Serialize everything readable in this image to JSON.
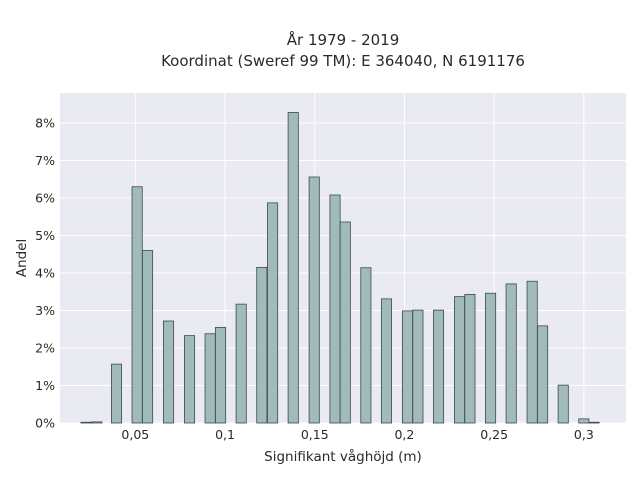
{
  "chart_data": {
    "type": "bar",
    "title_lines": [
      "År 1979 - 2019",
      "Koordinat (Sweref 99 TM): E 364040, N 6191176"
    ],
    "xlabel": "Signifikant våghöjd (m)",
    "ylabel": "Andel",
    "xlim": [
      0.008,
      0.3235
    ],
    "ylim": [
      0,
      0.088
    ],
    "x_ticks": [
      0.05,
      0.1,
      0.15,
      0.2,
      0.25,
      0.3
    ],
    "x_tick_labels": [
      "0,05",
      "0,1",
      "0,15",
      "0,2",
      "0,25",
      "0,3"
    ],
    "y_ticks": [
      0,
      0.01,
      0.02,
      0.03,
      0.04,
      0.05,
      0.06,
      0.07,
      0.08
    ],
    "y_tick_labels": [
      "0%",
      "1%",
      "2%",
      "3%",
      "4%",
      "5%",
      "6%",
      "7%",
      "8%"
    ],
    "bar_width": 0.0057,
    "x": [
      0.0225,
      0.0285,
      0.0395,
      0.051,
      0.0568,
      0.0685,
      0.0802,
      0.0917,
      0.0975,
      0.109,
      0.1205,
      0.1265,
      0.138,
      0.1497,
      0.1613,
      0.167,
      0.1785,
      0.19,
      0.2017,
      0.2075,
      0.219,
      0.2307,
      0.2365,
      0.248,
      0.2595,
      0.2712,
      0.277,
      0.2885,
      0.3,
      0.3057
    ],
    "values": [
      0.0002,
      0.0003,
      0.0157,
      0.063,
      0.046,
      0.0272,
      0.0233,
      0.0238,
      0.0255,
      0.0317,
      0.0415,
      0.0587,
      0.0828,
      0.0656,
      0.0608,
      0.0536,
      0.0414,
      0.0331,
      0.0299,
      0.0301,
      0.0301,
      0.0337,
      0.0343,
      0.0346,
      0.0371,
      0.0378,
      0.0259,
      0.0101,
      0.0011,
      0.0002
    ],
    "grid": true,
    "legend": false,
    "colors": {
      "plot_background": "#eaeaf2",
      "grid": "#ffffff",
      "bar_fill": "#a1bbbc",
      "bar_edge": "#3b4a4a",
      "text": "#2a2a2a"
    }
  }
}
